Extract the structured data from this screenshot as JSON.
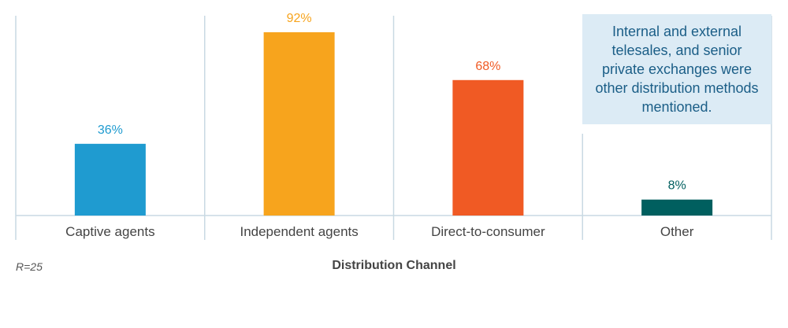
{
  "chart_data": {
    "type": "bar",
    "categories": [
      "Captive agents",
      "Independent agents",
      "Direct-to-consumer",
      "Other"
    ],
    "values": [
      36,
      92,
      68,
      8
    ],
    "value_labels": [
      "36%",
      "92%",
      "68%",
      "8%"
    ],
    "colors": [
      "#1f9bd0",
      "#f7a41d",
      "#f05a24",
      "#005f5f"
    ],
    "label_colors": [
      "#1f9bd0",
      "#f7a41d",
      "#f05a24",
      "#005f5f"
    ],
    "xlabel": "Distribution Channel",
    "ylabel": "",
    "ylim": [
      0,
      100
    ],
    "grid": false,
    "annotation": "Internal and external telesales, and senior private exchanges were other distribution methods mentioned.",
    "footnote": "R=25"
  }
}
